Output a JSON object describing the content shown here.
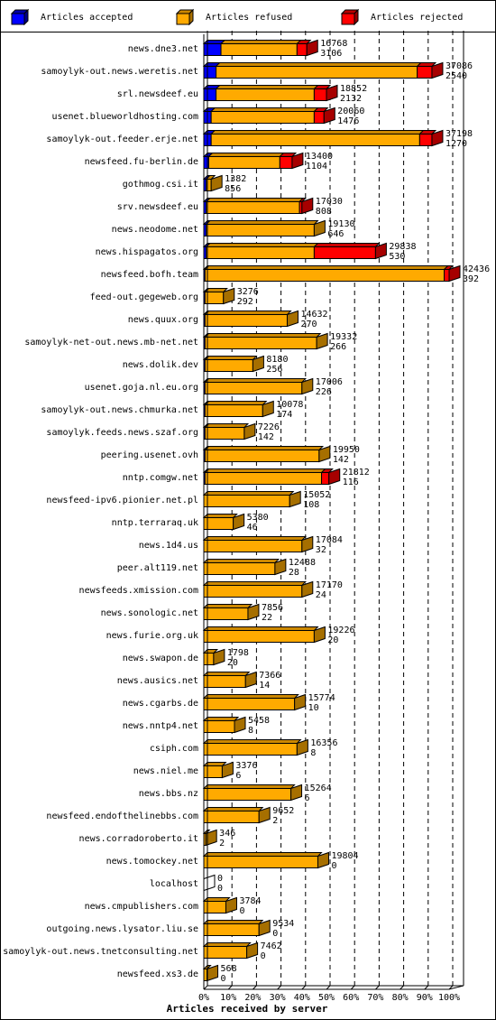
{
  "colors": {
    "accepted": "#0000ff",
    "refused": "#ffaa00",
    "rejected": "#ff0000",
    "grid": "#000000"
  },
  "legend": [
    {
      "label": "Articles accepted",
      "color": "#0000ff"
    },
    {
      "label": "Articles refused",
      "color": "#ffaa00"
    },
    {
      "label": "Articles rejected",
      "color": "#ff0000"
    }
  ],
  "chart_data": {
    "type": "bar",
    "orientation": "horizontal",
    "stacked": true,
    "xlabel": "Articles received by server",
    "xlim": [
      0,
      100
    ],
    "xticks": [
      "0%",
      "10%",
      "20%",
      "30%",
      "40%",
      "50%",
      "60%",
      "70%",
      "80%",
      "90%",
      "100%"
    ],
    "grid": true,
    "legend_position": "top",
    "rows": [
      {
        "server": "news.dne3.net",
        "total": 16768,
        "count": 3106,
        "accepted": 7,
        "refused": 31,
        "rejected": 4
      },
      {
        "server": "samoylyk-out.news.weretis.net",
        "total": 37086,
        "count": 2540,
        "accepted": 5,
        "refused": 82,
        "rejected": 6
      },
      {
        "server": "srl.newsdeef.eu",
        "total": 18852,
        "count": 2132,
        "accepted": 5,
        "refused": 40,
        "rejected": 5
      },
      {
        "server": "usenet.blueworldhosting.com",
        "total": 20060,
        "count": 1476,
        "accepted": 3,
        "refused": 42,
        "rejected": 4
      },
      {
        "server": "samoylyk-out.feeder.erje.net",
        "total": 37198,
        "count": 1270,
        "accepted": 3,
        "refused": 85,
        "rejected": 5
      },
      {
        "server": "newsfeed.fu-berlin.de",
        "total": 13400,
        "count": 1104,
        "accepted": 2,
        "refused": 29,
        "rejected": 5
      },
      {
        "server": "gothmog.csi.it",
        "total": 1382,
        "count": 856,
        "accepted": 1,
        "refused": 2,
        "rejected": 0
      },
      {
        "server": "srv.newsdeef.eu",
        "total": 17030,
        "count": 808,
        "accepted": 1,
        "refused": 38,
        "rejected": 1
      },
      {
        "server": "news.neodome.net",
        "total": 19130,
        "count": 646,
        "accepted": 1,
        "refused": 44,
        "rejected": 0
      },
      {
        "server": "news.hispagatos.org",
        "total": 29838,
        "count": 530,
        "accepted": 1,
        "refused": 44,
        "rejected": 25
      },
      {
        "server": "newsfeed.bofh.team",
        "total": 42436,
        "count": 392,
        "accepted": 0.5,
        "refused": 97.5,
        "rejected": 2
      },
      {
        "server": "feed-out.gegeweb.org",
        "total": 3276,
        "count": 292,
        "accepted": 0.5,
        "refused": 7.5,
        "rejected": 0
      },
      {
        "server": "news.quux.org",
        "total": 14632,
        "count": 270,
        "accepted": 0.5,
        "refused": 33.5,
        "rejected": 0
      },
      {
        "server": "samoylyk-net-out.news.mb-net.net",
        "total": 19332,
        "count": 266,
        "accepted": 0.5,
        "refused": 45.5,
        "rejected": 0
      },
      {
        "server": "news.dolik.dev",
        "total": 8180,
        "count": 256,
        "accepted": 0.5,
        "refused": 19.5,
        "rejected": 0
      },
      {
        "server": "usenet.goja.nl.eu.org",
        "total": 17006,
        "count": 226,
        "accepted": 0.5,
        "refused": 39.5,
        "rejected": 0
      },
      {
        "server": "samoylyk-out.news.chmurka.net",
        "total": 10078,
        "count": 174,
        "accepted": 0.5,
        "refused": 23.5,
        "rejected": 0
      },
      {
        "server": "samoylyk.feeds.news.szaf.org",
        "total": 7226,
        "count": 142,
        "accepted": 0.5,
        "refused": 16,
        "rejected": 0
      },
      {
        "server": "peering.usenet.ovh",
        "total": 19950,
        "count": 142,
        "accepted": 0.5,
        "refused": 46.5,
        "rejected": 0
      },
      {
        "server": "nntp.comgw.net",
        "total": 21812,
        "count": 116,
        "accepted": 0.5,
        "refused": 47.5,
        "rejected": 3
      },
      {
        "server": "newsfeed-ipv6.pionier.net.pl",
        "total": 15052,
        "count": 108,
        "accepted": 0,
        "refused": 35,
        "rejected": 0
      },
      {
        "server": "nntp.terraraq.uk",
        "total": 5380,
        "count": 46,
        "accepted": 0,
        "refused": 12,
        "rejected": 0
      },
      {
        "server": "news.1d4.us",
        "total": 17084,
        "count": 32,
        "accepted": 0,
        "refused": 40,
        "rejected": 0
      },
      {
        "server": "peer.alt119.net",
        "total": 12488,
        "count": 28,
        "accepted": 0,
        "refused": 29,
        "rejected": 0
      },
      {
        "server": "newsfeeds.xmission.com",
        "total": 17170,
        "count": 24,
        "accepted": 0,
        "refused": 40,
        "rejected": 0
      },
      {
        "server": "news.sonologic.net",
        "total": 7856,
        "count": 22,
        "accepted": 0,
        "refused": 18,
        "rejected": 0
      },
      {
        "server": "news.furie.org.uk",
        "total": 19226,
        "count": 20,
        "accepted": 0,
        "refused": 45,
        "rejected": 0
      },
      {
        "server": "news.swapon.de",
        "total": 1798,
        "count": 20,
        "accepted": 0,
        "refused": 4,
        "rejected": 0
      },
      {
        "server": "news.ausics.net",
        "total": 7366,
        "count": 14,
        "accepted": 0,
        "refused": 17,
        "rejected": 0
      },
      {
        "server": "news.cgarbs.de",
        "total": 15774,
        "count": 10,
        "accepted": 0,
        "refused": 37,
        "rejected": 0
      },
      {
        "server": "news.nntp4.net",
        "total": 5458,
        "count": 8,
        "accepted": 0,
        "refused": 12.5,
        "rejected": 0
      },
      {
        "server": "csiph.com",
        "total": 16356,
        "count": 8,
        "accepted": 0,
        "refused": 38,
        "rejected": 0
      },
      {
        "server": "news.niel.me",
        "total": 3376,
        "count": 6,
        "accepted": 0,
        "refused": 7.5,
        "rejected": 0
      },
      {
        "server": "news.bbs.nz",
        "total": 15264,
        "count": 6,
        "accepted": 0,
        "refused": 35.5,
        "rejected": 0
      },
      {
        "server": "newsfeed.endofthelinebbs.com",
        "total": 9652,
        "count": 2,
        "accepted": 0,
        "refused": 22.5,
        "rejected": 0
      },
      {
        "server": "news.corradoroberto.it",
        "total": 346,
        "count": 2,
        "accepted": 0,
        "refused": 0.8,
        "rejected": 0
      },
      {
        "server": "news.tomockey.net",
        "total": 19804,
        "count": 0,
        "accepted": 0,
        "refused": 46.5,
        "rejected": 0
      },
      {
        "server": "localhost",
        "total": 0,
        "count": 0,
        "accepted": 0,
        "refused": 0,
        "rejected": 0
      },
      {
        "server": "news.cmpublishers.com",
        "total": 3784,
        "count": 0,
        "accepted": 0,
        "refused": 9,
        "rejected": 0
      },
      {
        "server": "outgoing.news.lysator.liu.se",
        "total": 9534,
        "count": 0,
        "accepted": 0,
        "refused": 22.5,
        "rejected": 0
      },
      {
        "server": "samoylyk-out.news.tnetconsulting.net",
        "total": 7462,
        "count": 0,
        "accepted": 0,
        "refused": 17.5,
        "rejected": 0
      },
      {
        "server": "newsfeed.xs3.de",
        "total": 568,
        "count": 0,
        "accepted": 0,
        "refused": 1.3,
        "rejected": 0
      }
    ]
  }
}
